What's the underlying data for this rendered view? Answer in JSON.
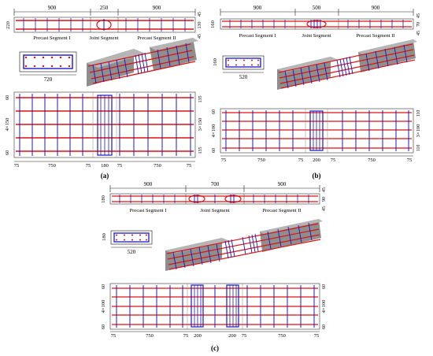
{
  "panels": [
    {
      "label": "(a)",
      "elevation_dims": [
        "900",
        "250",
        "900"
      ],
      "elevation_side_dims": [
        "45",
        "130",
        "45"
      ],
      "height_dim": "220",
      "segment_labels": [
        "Precast Segment I",
        "Joint Segment",
        "Precast Segment II"
      ],
      "section_width": "720",
      "plan_side_left": "4×150",
      "plan_side_left_ends": [
        "60",
        "60"
      ],
      "plan_side_right": "3×150",
      "plan_side_right_ends": [
        "135",
        "135"
      ],
      "plan_bottom_dims": [
        "75",
        "750",
        "75",
        "180",
        "75",
        "750",
        "75"
      ]
    },
    {
      "label": "(b)",
      "elevation_dims": [
        "900",
        "500",
        "900"
      ],
      "elevation_side_dims": [
        "45",
        "70",
        "45"
      ],
      "height_dim": "160",
      "segment_labels": [
        "Precast Segment I",
        "Joint Segment",
        "Precast Segment II"
      ],
      "section_width": "520",
      "plan_side_left": "4×100",
      "plan_side_left_ends": [
        "60",
        "60"
      ],
      "plan_side_right": "3×100",
      "plan_side_right_ends": [
        "110",
        "110"
      ],
      "plan_bottom_dims": [
        "75",
        "750",
        "75",
        "200",
        "75",
        "750",
        "75"
      ]
    },
    {
      "label": "(c)",
      "elevation_dims": [
        "900",
        "700",
        "900"
      ],
      "elevation_side_dims": [
        "45",
        "90",
        "45"
      ],
      "height_dim": "180",
      "segment_labels": [
        "Precast Segment I",
        "Joint Segment",
        "Precast Segment II"
      ],
      "section_width": "520",
      "plan_side_left": "4×100",
      "plan_side_left_ends": [
        "60",
        "60"
      ],
      "plan_side_right": "4×100",
      "plan_side_right_ends": [
        "60",
        "60"
      ],
      "plan_bottom_dims": [
        "75",
        "750",
        "75",
        "200",
        "200",
        "75",
        "750",
        "75"
      ]
    }
  ],
  "colors": {
    "rebar_long": "#e01010",
    "rebar_stirrup": "#1818c8",
    "concrete": "#9a9a9a",
    "concrete_dark": "#6f6f6f",
    "dim_line": "#222222"
  }
}
